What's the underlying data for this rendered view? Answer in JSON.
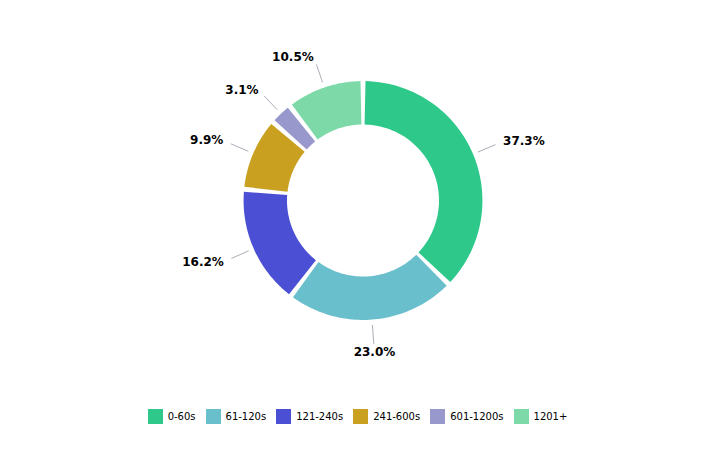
{
  "chart_data": {
    "type": "donut",
    "categories": [
      "0-60s",
      "61-120s",
      "121-240s",
      "241-600s",
      "601-1200s",
      "1201+"
    ],
    "values": [
      37.3,
      23.0,
      16.2,
      9.9,
      3.1,
      10.5
    ],
    "value_labels": [
      "37.3%",
      "23.0%",
      "16.2%",
      "9.9%",
      "3.1%",
      "10.5%"
    ],
    "colors": [
      "#2ec98a",
      "#6abfcc",
      "#4a4fd4",
      "#c9a020",
      "#9898cc",
      "#7dd9a8"
    ],
    "data_labels": true,
    "legend": "bottom"
  }
}
